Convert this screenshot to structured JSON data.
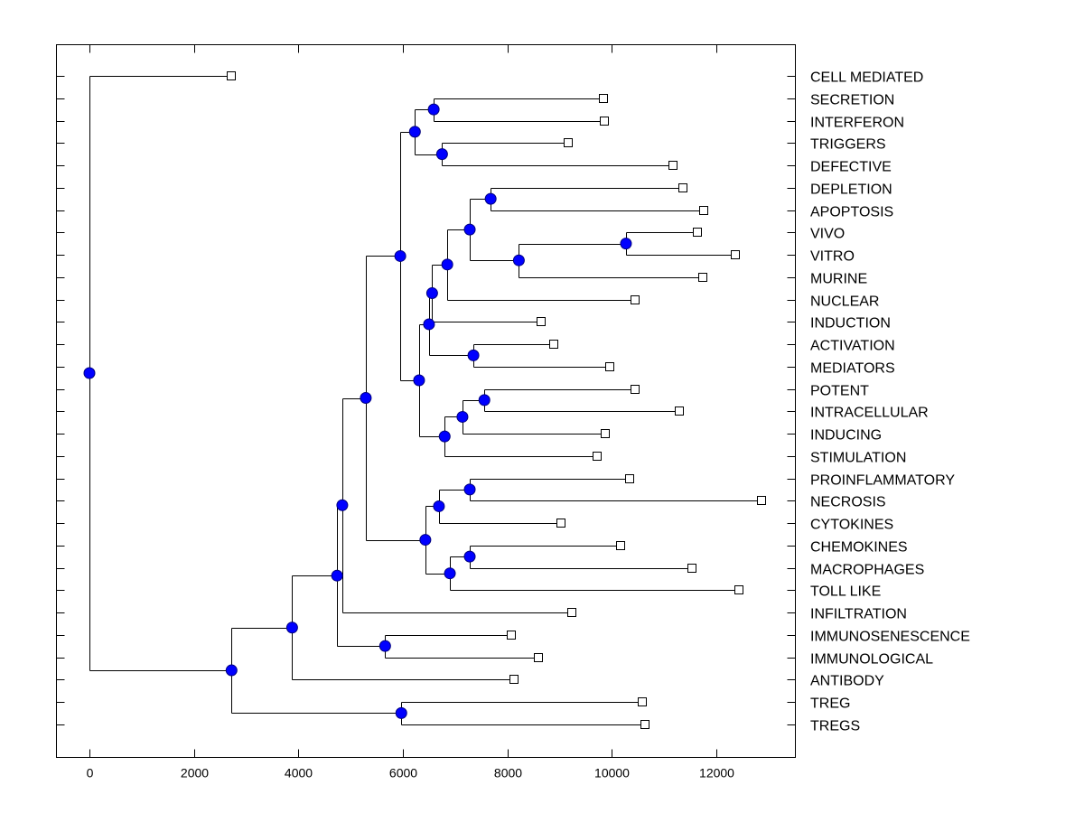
{
  "chart_data": {
    "type": "dendrogram",
    "title": "",
    "xlabel": "",
    "ylabel": "",
    "xlim": [
      -650,
      13550
    ],
    "x_ticks": [
      0,
      2000,
      4000,
      6000,
      8000,
      10000,
      12000
    ],
    "x_tick_labels": [
      "0",
      "2000",
      "4000",
      "6000",
      "8000",
      "10000",
      "12000"
    ],
    "grid": false,
    "leaf_order": [
      "CELL MEDIATED",
      "SECRETION",
      "INTERFERON",
      "TRIGGERS",
      "DEFECTIVE",
      "DEPLETION",
      "APOPTOSIS",
      "VIVO",
      "VITRO",
      "MURINE",
      "NUCLEAR",
      "INDUCTION",
      "ACTIVATION",
      "MEDIATORS",
      "POTENT",
      "INTRACELLULAR",
      "INDUCING",
      "STIMULATION",
      "PROINFLAMMATORY",
      "NECROSIS",
      "CYTOKINES",
      "CHEMOKINES",
      "MACROPHAGES",
      "TOLL LIKE",
      "INFILTRATION",
      "IMMUNOSENESCENCE",
      "IMMUNOLOGICAL",
      "ANTIBODY",
      "TREG",
      "TREGS"
    ],
    "leaf_values": {
      "CELL MEDIATED": 2720,
      "SECRETION": 9840,
      "INTERFERON": 9860,
      "TRIGGERS": 9170,
      "DEFECTIVE": 11170,
      "DEPLETION": 11360,
      "APOPTOSIS": 11760,
      "VIVO": 11640,
      "VITRO": 12360,
      "MURINE": 11740,
      "NUCLEAR": 10450,
      "INDUCTION": 8650,
      "ACTIVATION": 8890,
      "MEDIATORS": 9960,
      "POTENT": 10450,
      "INTRACELLULAR": 11290,
      "INDUCING": 9870,
      "STIMULATION": 9720,
      "PROINFLAMMATORY": 10340,
      "NECROSIS": 12870,
      "CYTOKINES": 9030,
      "CHEMOKINES": 10170,
      "MACROPHAGES": 11530,
      "TOLL LIKE": 12430,
      "INFILTRATION": 9240,
      "IMMUNOSENESCENCE": 8080,
      "IMMUNOLOGICAL": 8600,
      "ANTIBODY": 8130,
      "TREG": 10580,
      "TREGS": 10640
    },
    "tree": {
      "value": 0,
      "children": [
        {
          "leaf": "CELL MEDIATED"
        },
        {
          "value": 2720,
          "children": [
            {
              "value": 3880,
              "children": [
                {
                  "value": 4740,
                  "children": [
                    {
                      "value": 4840,
                      "children": [
                        {
                          "value": 5290,
                          "children": [
                            {
                              "value": 5950,
                              "children": [
                                {
                                  "value": 6230,
                                  "children": [
                                    {
                                      "value": 6590,
                                      "children": [
                                        {
                                          "leaf": "SECRETION"
                                        },
                                        {
                                          "leaf": "INTERFERON"
                                        }
                                      ]
                                    },
                                    {
                                      "value": 6750,
                                      "children": [
                                        {
                                          "leaf": "TRIGGERS"
                                        },
                                        {
                                          "leaf": "DEFECTIVE"
                                        }
                                      ]
                                    }
                                  ]
                                },
                                {
                                  "value": 6310,
                                  "children": [
                                    {
                                      "value": 6500,
                                      "children": [
                                        {
                                          "value": 6560,
                                          "children": [
                                            {
                                              "value": 6850,
                                              "children": [
                                                {
                                                  "value": 7280,
                                                  "children": [
                                                    {
                                                      "value": 7680,
                                                      "children": [
                                                        {
                                                          "leaf": "DEPLETION"
                                                        },
                                                        {
                                                          "leaf": "APOPTOSIS"
                                                        }
                                                      ]
                                                    },
                                                    {
                                                      "value": 8220,
                                                      "children": [
                                                        {
                                                          "value": 10270,
                                                          "children": [
                                                            {
                                                              "leaf": "VIVO"
                                                            },
                                                            {
                                                              "leaf": "VITRO"
                                                            }
                                                          ]
                                                        },
                                                        {
                                                          "leaf": "MURINE"
                                                        }
                                                      ]
                                                    }
                                                  ]
                                                },
                                                {
                                                  "leaf": "NUCLEAR"
                                                }
                                              ]
                                            },
                                            {
                                              "leaf": "INDUCTION"
                                            }
                                          ]
                                        },
                                        {
                                          "value": 7350,
                                          "children": [
                                            {
                                              "leaf": "ACTIVATION"
                                            },
                                            {
                                              "leaf": "MEDIATORS"
                                            }
                                          ]
                                        }
                                      ]
                                    },
                                    {
                                      "value": 6800,
                                      "children": [
                                        {
                                          "value": 7140,
                                          "children": [
                                            {
                                              "value": 7560,
                                              "children": [
                                                {
                                                  "leaf": "POTENT"
                                                },
                                                {
                                                  "leaf": "INTRACELLULAR"
                                                }
                                              ]
                                            },
                                            {
                                              "leaf": "INDUCING"
                                            }
                                          ]
                                        },
                                        {
                                          "leaf": "STIMULATION"
                                        }
                                      ]
                                    }
                                  ]
                                }
                              ]
                            },
                            {
                              "value": 6430,
                              "children": [
                                {
                                  "value": 6690,
                                  "children": [
                                    {
                                      "value": 7280,
                                      "children": [
                                        {
                                          "leaf": "PROINFLAMMATORY"
                                        },
                                        {
                                          "leaf": "NECROSIS"
                                        }
                                      ]
                                    },
                                    {
                                      "leaf": "CYTOKINES"
                                    }
                                  ]
                                },
                                {
                                  "value": 6900,
                                  "children": [
                                    {
                                      "value": 7280,
                                      "children": [
                                        {
                                          "leaf": "CHEMOKINES"
                                        },
                                        {
                                          "leaf": "MACROPHAGES"
                                        }
                                      ]
                                    },
                                    {
                                      "leaf": "TOLL LIKE"
                                    }
                                  ]
                                }
                              ]
                            }
                          ]
                        },
                        {
                          "leaf": "INFILTRATION"
                        }
                      ]
                    },
                    {
                      "value": 5660,
                      "children": [
                        {
                          "leaf": "IMMUNOSENESCENCE"
                        },
                        {
                          "leaf": "IMMUNOLOGICAL"
                        }
                      ]
                    }
                  ]
                },
                {
                  "leaf": "ANTIBODY"
                }
              ]
            },
            {
              "value": 5970,
              "children": [
                {
                  "leaf": "TREG"
                },
                {
                  "leaf": "TREGS"
                }
              ]
            }
          ]
        }
      ]
    },
    "colors": {
      "node_fill": "#0000ff",
      "leaf_fill": "#ffffff",
      "line": "#000000"
    }
  }
}
